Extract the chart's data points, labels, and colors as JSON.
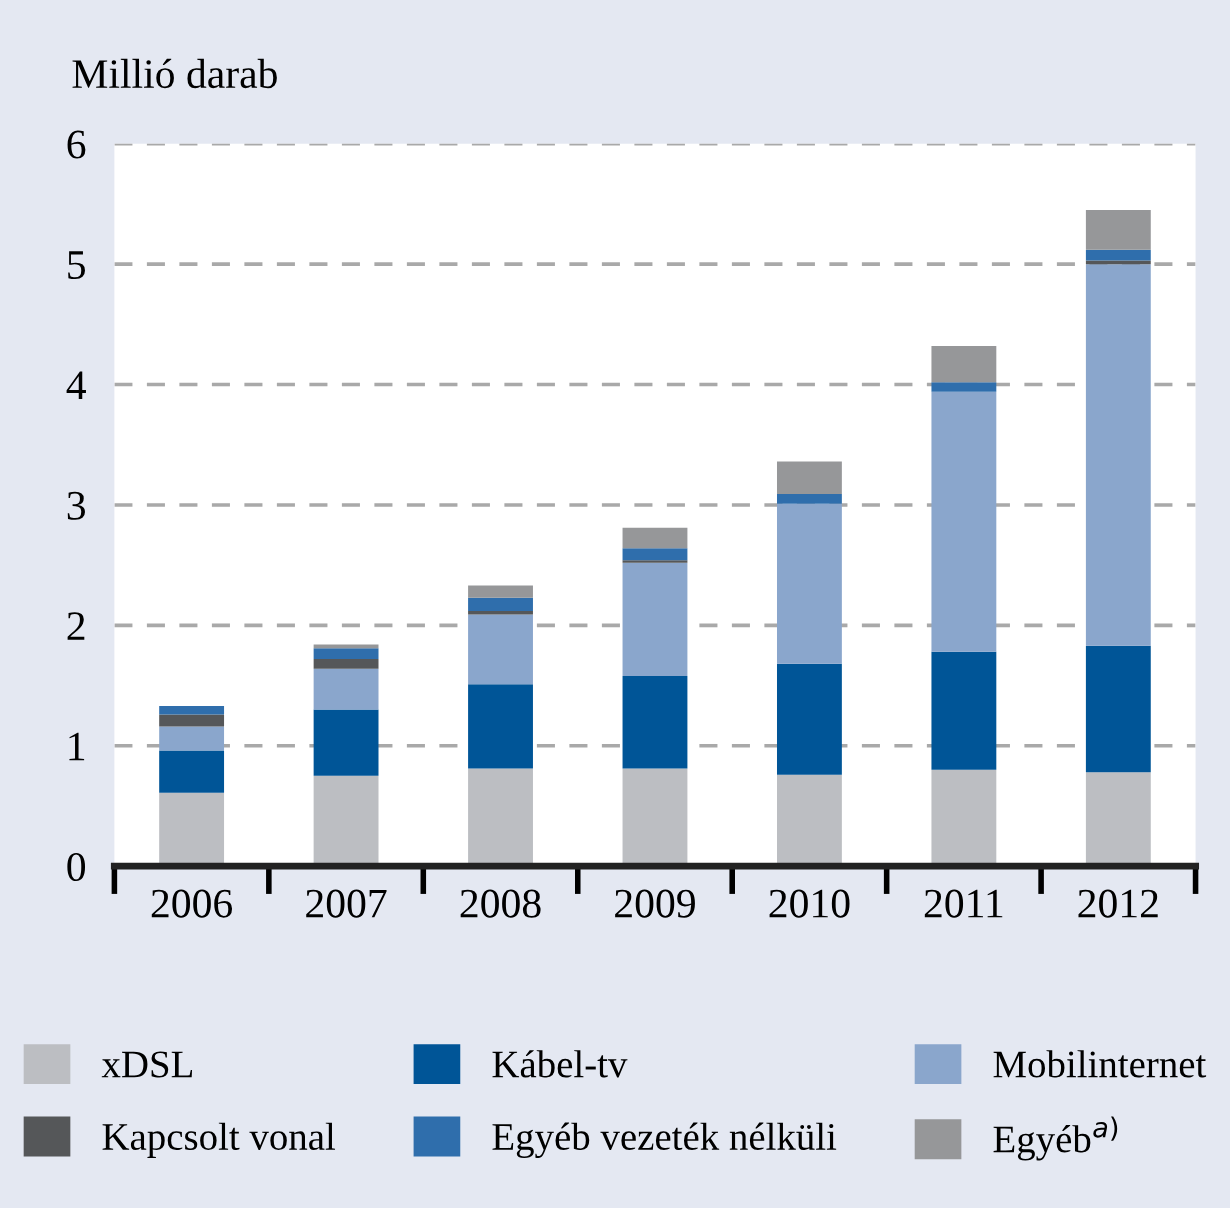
{
  "chart_data": {
    "type": "bar",
    "stacked": true,
    "ylabel": "Millió darab",
    "categories": [
      "2006",
      "2007",
      "2008",
      "2009",
      "2010",
      "2011",
      "2012"
    ],
    "series": [
      {
        "name": "xDSL",
        "color": "#bcbec2",
        "values": [
          0.61,
          0.75,
          0.81,
          0.81,
          0.76,
          0.8,
          0.78
        ]
      },
      {
        "name": "Kábel-tv",
        "color": "#005597",
        "values": [
          0.35,
          0.55,
          0.7,
          0.77,
          0.92,
          0.98,
          1.05
        ]
      },
      {
        "name": "Mobilinternet",
        "color": "#8aa6cc",
        "values": [
          0.2,
          0.34,
          0.58,
          0.94,
          1.33,
          2.16,
          3.17
        ]
      },
      {
        "name": "Kapcsolt vonal",
        "color": "#555759",
        "values": [
          0.1,
          0.08,
          0.03,
          0.02,
          0,
          0,
          0.03
        ]
      },
      {
        "name": "Egyéb vezeték nélküli",
        "color": "#2f6eac",
        "values": [
          0.07,
          0.09,
          0.11,
          0.1,
          0.08,
          0.08,
          0.09
        ]
      },
      {
        "name": "Egyéb$^{a)}$",
        "color": "#969799",
        "values": [
          0,
          0.03,
          0.1,
          0.17,
          0.27,
          0.3,
          0.33
        ]
      }
    ],
    "ylim": [
      0,
      6
    ],
    "yticks": [
      0,
      1,
      2,
      3,
      4,
      5,
      6
    ],
    "grid": "y",
    "legend": "bottom"
  }
}
